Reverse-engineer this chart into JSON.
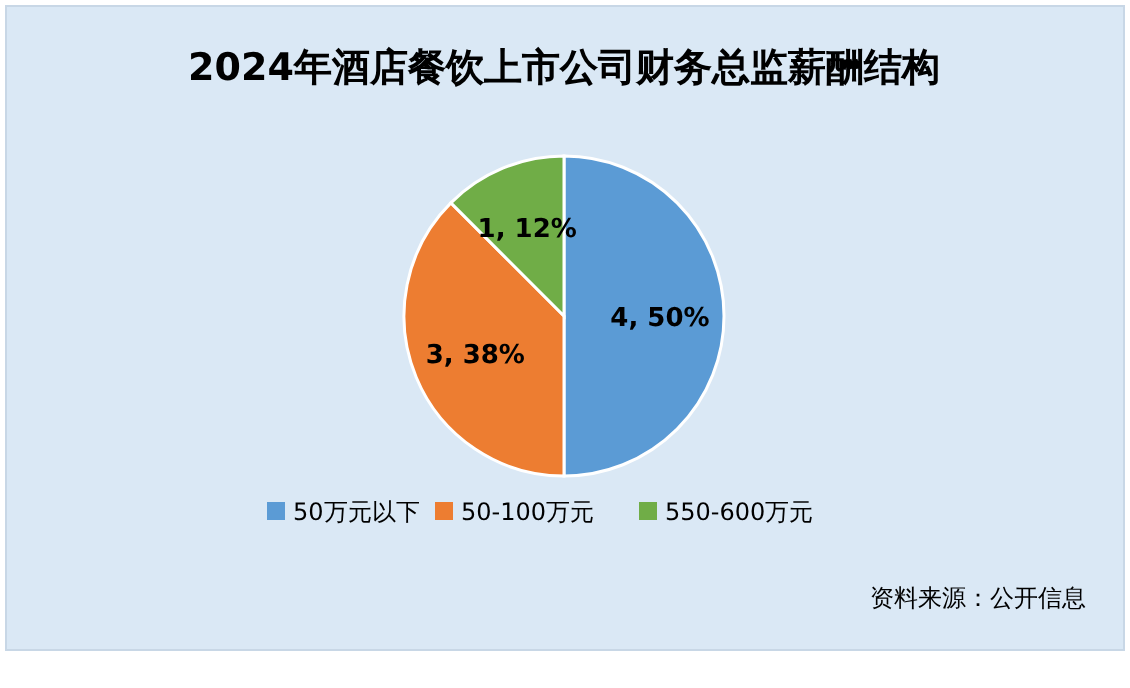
{
  "chart_data": {
    "type": "pie",
    "title": "2024年酒店餐饮上市公司财务总监薪酬结构",
    "categories": [
      "50万元以下",
      "50-100万元",
      "550-600万元"
    ],
    "values": [
      4,
      3,
      1
    ],
    "colors": [
      "#5b9bd5",
      "#ed7d31",
      "#70ad47"
    ],
    "value_labels": [
      "4, 50%",
      "3, 38%",
      "1, 12%"
    ],
    "legend": "bottom",
    "annotations": [
      "资料来源：公开信息"
    ]
  }
}
